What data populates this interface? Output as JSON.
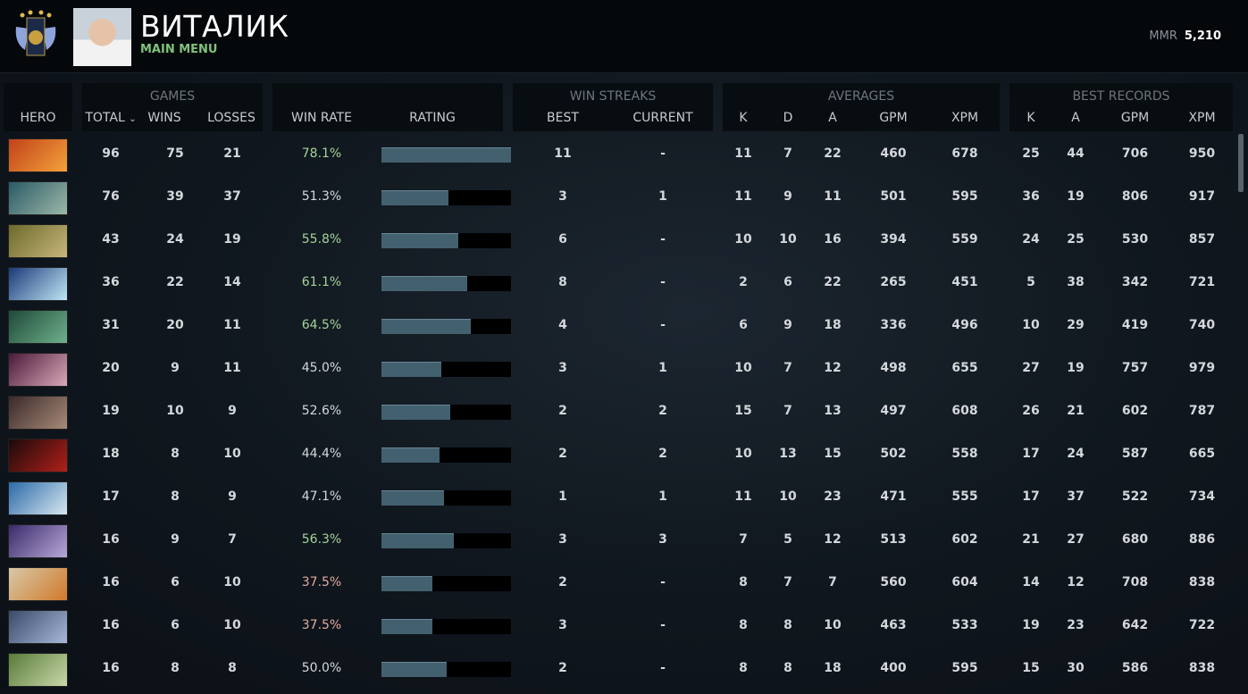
{
  "header": {
    "player_name": "ВИТАЛИК",
    "subtitle": "MAIN MENU",
    "mmr_label": "MMR",
    "mmr_value": "5,210"
  },
  "groups": {
    "games": "GAMES",
    "win_streaks": "WIN STREAKS",
    "averages": "AVERAGES",
    "best_records": "BEST RECORDS"
  },
  "columns": {
    "hero": "HERO",
    "total": "TOTAL",
    "wins": "WINS",
    "losses": "LOSSES",
    "win_rate": "WIN RATE",
    "rating": "RATING",
    "best": "BEST",
    "current": "CURRENT",
    "k": "K",
    "d": "D",
    "a": "A",
    "gpm": "GPM",
    "xpm": "XPM",
    "bk": "K",
    "ba": "A",
    "bgpm": "GPM",
    "bxpm": "XPM"
  },
  "colors": {
    "good": "#a3d39a",
    "bad": "#e0a9a0",
    "neutral": "#d4d8dc",
    "bar": "#43606f"
  },
  "rows": [
    {
      "hero_colors": [
        "#c2421a",
        "#f3a23b"
      ],
      "total": "96",
      "wins": "75",
      "losses": "21",
      "win_rate": "78.1%",
      "rating": 1.0,
      "best": "11",
      "current": "-",
      "k": "11",
      "d": "7",
      "a": "22",
      "gpm": "460",
      "xpm": "678",
      "bk": "25",
      "ba": "44",
      "bgpm": "706",
      "bxpm": "950"
    },
    {
      "hero_colors": [
        "#2a5a66",
        "#9cb8a8"
      ],
      "total": "76",
      "wins": "39",
      "losses": "37",
      "win_rate": "51.3%",
      "rating": 0.52,
      "best": "3",
      "current": "1",
      "k": "11",
      "d": "9",
      "a": "11",
      "gpm": "501",
      "xpm": "595",
      "bk": "36",
      "ba": "19",
      "bgpm": "806",
      "bxpm": "917"
    },
    {
      "hero_colors": [
        "#6b6a2c",
        "#c9b67a"
      ],
      "total": "43",
      "wins": "24",
      "losses": "19",
      "win_rate": "55.8%",
      "rating": 0.59,
      "best": "6",
      "current": "-",
      "k": "10",
      "d": "10",
      "a": "16",
      "gpm": "394",
      "xpm": "559",
      "bk": "24",
      "ba": "25",
      "bgpm": "530",
      "bxpm": "857"
    },
    {
      "hero_colors": [
        "#1c3a7a",
        "#bfe6f5"
      ],
      "total": "36",
      "wins": "22",
      "losses": "14",
      "win_rate": "61.1%",
      "rating": 0.66,
      "best": "8",
      "current": "-",
      "k": "2",
      "d": "6",
      "a": "22",
      "gpm": "265",
      "xpm": "451",
      "bk": "5",
      "ba": "38",
      "bgpm": "342",
      "bxpm": "721"
    },
    {
      "hero_colors": [
        "#1f4a3a",
        "#6fb08c"
      ],
      "total": "31",
      "wins": "20",
      "losses": "11",
      "win_rate": "64.5%",
      "rating": 0.69,
      "best": "4",
      "current": "-",
      "k": "6",
      "d": "9",
      "a": "18",
      "gpm": "336",
      "xpm": "496",
      "bk": "10",
      "ba": "29",
      "bgpm": "419",
      "bxpm": "740"
    },
    {
      "hero_colors": [
        "#4a1a3a",
        "#d9a9b8"
      ],
      "total": "20",
      "wins": "9",
      "losses": "11",
      "win_rate": "45.0%",
      "rating": 0.46,
      "best": "3",
      "current": "1",
      "k": "10",
      "d": "7",
      "a": "12",
      "gpm": "498",
      "xpm": "655",
      "bk": "27",
      "ba": "19",
      "bgpm": "757",
      "bxpm": "979"
    },
    {
      "hero_colors": [
        "#3a2a2a",
        "#a88a78"
      ],
      "total": "19",
      "wins": "10",
      "losses": "9",
      "win_rate": "52.6%",
      "rating": 0.53,
      "best": "2",
      "current": "2",
      "k": "15",
      "d": "7",
      "a": "13",
      "gpm": "497",
      "xpm": "608",
      "bk": "26",
      "ba": "21",
      "bgpm": "602",
      "bxpm": "787"
    },
    {
      "hero_colors": [
        "#1a0a0a",
        "#b0201a"
      ],
      "total": "18",
      "wins": "8",
      "losses": "10",
      "win_rate": "44.4%",
      "rating": 0.45,
      "best": "2",
      "current": "2",
      "k": "10",
      "d": "13",
      "a": "15",
      "gpm": "502",
      "xpm": "558",
      "bk": "17",
      "ba": "24",
      "bgpm": "587",
      "bxpm": "665"
    },
    {
      "hero_colors": [
        "#2a6aa8",
        "#d8e8f0"
      ],
      "total": "17",
      "wins": "8",
      "losses": "9",
      "win_rate": "47.1%",
      "rating": 0.48,
      "best": "1",
      "current": "1",
      "k": "11",
      "d": "10",
      "a": "23",
      "gpm": "471",
      "xpm": "555",
      "bk": "17",
      "ba": "37",
      "bgpm": "522",
      "bxpm": "734"
    },
    {
      "hero_colors": [
        "#3a2a6a",
        "#b8a8d8"
      ],
      "total": "16",
      "wins": "9",
      "losses": "7",
      "win_rate": "56.3%",
      "rating": 0.56,
      "best": "3",
      "current": "3",
      "k": "7",
      "d": "5",
      "a": "12",
      "gpm": "513",
      "xpm": "602",
      "bk": "21",
      "ba": "27",
      "bgpm": "680",
      "bxpm": "886"
    },
    {
      "hero_colors": [
        "#d8c8a8",
        "#d07a2a"
      ],
      "total": "16",
      "wins": "6",
      "losses": "10",
      "win_rate": "37.5%",
      "rating": 0.39,
      "best": "2",
      "current": "-",
      "k": "8",
      "d": "7",
      "a": "7",
      "gpm": "560",
      "xpm": "604",
      "bk": "14",
      "ba": "12",
      "bgpm": "708",
      "bxpm": "838"
    },
    {
      "hero_colors": [
        "#3a4a6a",
        "#a8b8d8"
      ],
      "total": "16",
      "wins": "6",
      "losses": "10",
      "win_rate": "37.5%",
      "rating": 0.39,
      "best": "3",
      "current": "-",
      "k": "8",
      "d": "8",
      "a": "10",
      "gpm": "463",
      "xpm": "533",
      "bk": "19",
      "ba": "23",
      "bgpm": "642",
      "bxpm": "722"
    },
    {
      "hero_colors": [
        "#5a7a3a",
        "#c8d8a8"
      ],
      "total": "16",
      "wins": "8",
      "losses": "8",
      "win_rate": "50.0%",
      "rating": 0.5,
      "best": "2",
      "current": "-",
      "k": "8",
      "d": "8",
      "a": "18",
      "gpm": "400",
      "xpm": "595",
      "bk": "15",
      "ba": "30",
      "bgpm": "586",
      "bxpm": "838"
    }
  ]
}
